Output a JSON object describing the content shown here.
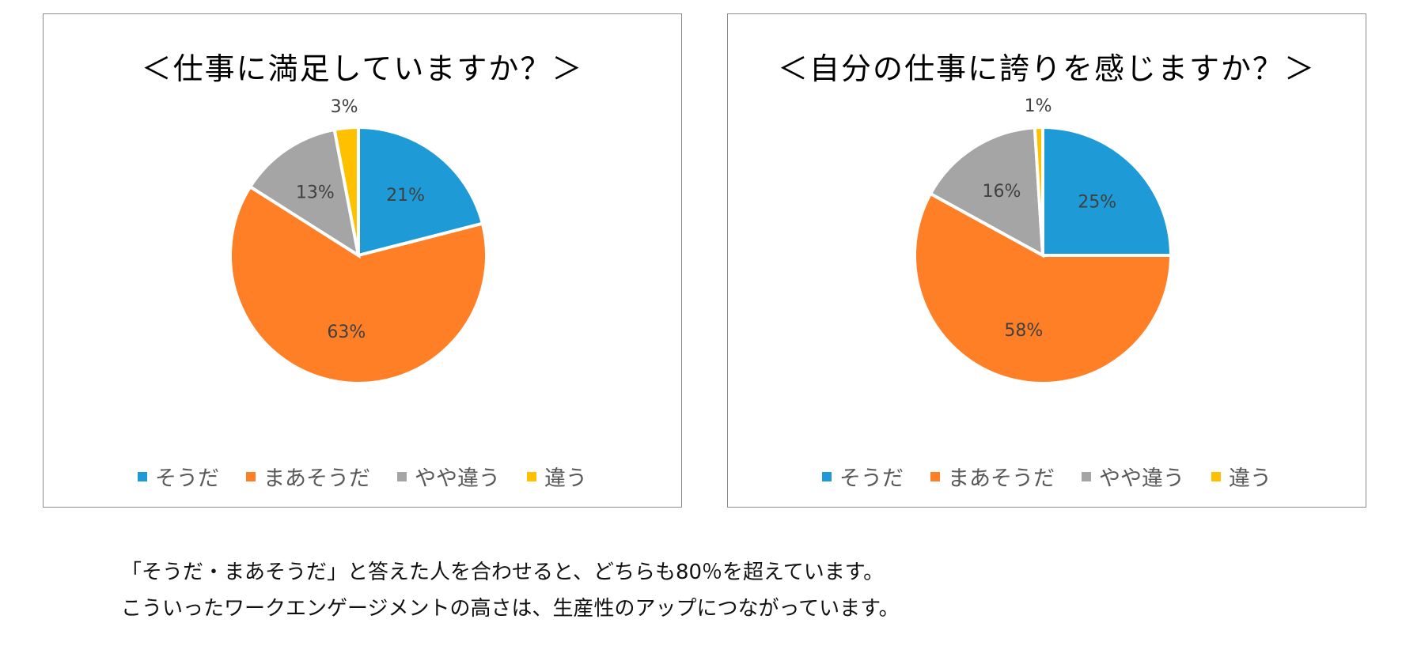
{
  "colors": {
    "sou_da": "#1E9BD7",
    "maa_sou_da": "#FF7F27",
    "yaya_chigau": "#A5A5A5",
    "chigau": "#FFC000"
  },
  "chart_data": [
    {
      "type": "pie",
      "title": "＜仕事に満足していますか？＞",
      "categories": [
        "そうだ",
        "まあそうだ",
        "やや違う",
        "違う"
      ],
      "values": [
        21,
        63,
        13,
        3
      ],
      "labels": [
        "21%",
        "63%",
        "13%",
        "3%"
      ],
      "legend": "bottom"
    },
    {
      "type": "pie",
      "title": "＜自分の仕事に誇りを感じますか？＞",
      "categories": [
        "そうだ",
        "まあそうだ",
        "やや違う",
        "違う"
      ],
      "values": [
        25,
        58,
        16,
        1
      ],
      "labels": [
        "25%",
        "58%",
        "16%",
        "1%"
      ],
      "legend": "bottom"
    }
  ],
  "caption": {
    "line1": "「そうだ・まあそうだ」と答えた人を合わせると、どちらも80％を超えています。",
    "line2": "こういったワークエンゲージメントの高さは、生産性のアップにつながっています。"
  }
}
